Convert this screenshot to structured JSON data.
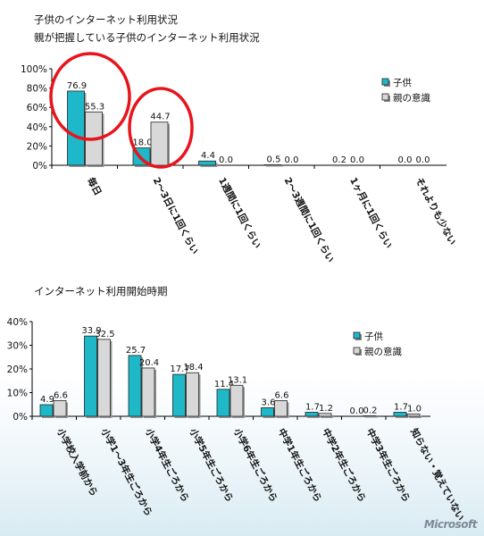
{
  "titles": {
    "chart1_line1": "子供のインターネット利用状況",
    "chart1_line2": "親が把握している子供のインターネット利用状況",
    "chart2": "インターネット利用開始時期"
  },
  "watermark": "Microsoft",
  "colors": {
    "child": "#1fb8c9",
    "parent": "#d8d8d8",
    "highlight": "#e8141c"
  },
  "chart_data": [
    {
      "type": "bar",
      "title": "親が把握している子供のインターネット利用状況",
      "categories": [
        "毎日",
        "2～3日に1回くらい",
        "1週間に1回くらい",
        "2～3週間に1回くらい",
        "1ヶ月に1回くらい",
        "それよりも少ない"
      ],
      "series": [
        {
          "name": "子供",
          "values": [
            76.9,
            18.0,
            4.4,
            0.5,
            0.2,
            0.0
          ],
          "labels": [
            "76.9",
            "18.0",
            "4.4",
            "0.5",
            "0.2",
            "0.0"
          ]
        },
        {
          "name": "親の意識",
          "values": [
            55.3,
            44.7,
            0.0,
            0.0,
            0.0,
            0.0
          ],
          "labels": [
            "55.3",
            "44.7",
            "0.0",
            "0.0",
            "0.0",
            "0.0"
          ]
        }
      ],
      "yticks": [
        "0%",
        "20%",
        "40%",
        "60%",
        "80%",
        "100%"
      ],
      "ylim": [
        0,
        100
      ],
      "legend": "right",
      "highlighted_categories": [
        "毎日",
        "2～3日に1回くらい"
      ]
    },
    {
      "type": "bar",
      "title": "インターネット利用開始時期",
      "categories": [
        "小学校入学前から",
        "小学1～3年生ごろから",
        "小学4年生ごろから",
        "小学5年生ごろから",
        "小学6年生ごろから",
        "中学1年生ごろから",
        "中学2年生ごろから",
        "中学3年生ごろから",
        "知らない・覚えていない"
      ],
      "series": [
        {
          "name": "子供",
          "values": [
            4.9,
            33.9,
            25.7,
            17.7,
            11.4,
            3.6,
            1.7,
            0.0,
            1.7
          ],
          "labels": [
            "4.9",
            "33.9",
            "25.7",
            "17.7",
            "11.4",
            "3.6",
            "1.7",
            "0.0",
            "1.7"
          ]
        },
        {
          "name": "親の意識",
          "values": [
            6.6,
            32.5,
            20.4,
            18.4,
            13.1,
            6.6,
            1.2,
            0.2,
            1.0
          ],
          "labels": [
            "6.6",
            "32.5",
            "20.4",
            "18.4",
            "13.1",
            "6.6",
            "1.2",
            "0.2",
            "1.0"
          ]
        }
      ],
      "yticks": [
        "0%",
        "10%",
        "20%",
        "30%",
        "40%"
      ],
      "ylim": [
        0,
        40
      ],
      "legend": "top-right"
    }
  ]
}
